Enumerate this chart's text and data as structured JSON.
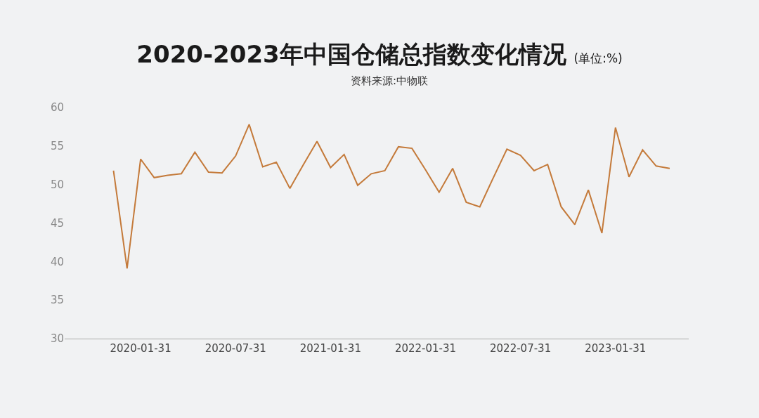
{
  "chart_data": {
    "type": "line",
    "title": "2020-2023年中国仓储总指数变化情况 (单位:%)",
    "annotations": [
      "资料来源:中物联"
    ],
    "categories": [
      null,
      null,
      "2020-01-31",
      null,
      null,
      null,
      null,
      null,
      null,
      "2020-07-31",
      null,
      null,
      null,
      null,
      null,
      null,
      "2021-01-31",
      null,
      null,
      null,
      null,
      null,
      null,
      "2022-01-31",
      null,
      null,
      null,
      null,
      null,
      null,
      "2022-07-31",
      null,
      null,
      null,
      null,
      null,
      null,
      "2023-01-31",
      null,
      null,
      null,
      null
    ],
    "series": [
      {
        "color": "#c47a3a",
        "values": [
          51.8,
          39.1,
          53.3,
          50.9,
          51.2,
          51.4,
          54.2,
          51.6,
          51.5,
          53.7,
          57.8,
          52.3,
          52.9,
          49.5,
          52.6,
          55.6,
          52.2,
          53.9,
          49.9,
          51.4,
          51.8,
          54.9,
          54.7,
          51.9,
          49.0,
          52.1,
          47.7,
          47.1,
          50.9,
          54.6,
          53.8,
          51.8,
          52.6,
          47.1,
          44.8,
          49.3,
          43.7,
          57.4,
          51.0,
          54.5,
          52.4,
          52.1
        ]
      }
    ],
    "ylim": [
      30,
      60
    ],
    "yticks": [
      30,
      35,
      40,
      45,
      50,
      55,
      60
    ],
    "grid": false,
    "marker": "none",
    "line_style": "solid"
  }
}
